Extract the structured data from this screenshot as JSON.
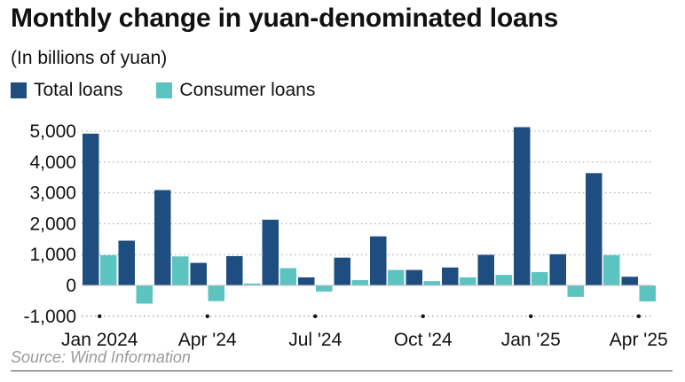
{
  "title": "Monthly change in yuan-denominated loans",
  "subtitle": "(In billions of yuan)",
  "source": "Source: Wind Information",
  "chart_data": {
    "type": "bar",
    "categories": [
      "Jan 2024",
      "Feb 2024",
      "Mar 2024",
      "Apr 2024",
      "May 2024",
      "Jun 2024",
      "Jul 2024",
      "Aug 2024",
      "Sep 2024",
      "Oct 2024",
      "Nov 2024",
      "Dec 2024",
      "Jan 2025",
      "Feb 2025",
      "Mar 2025",
      "Apr 2025"
    ],
    "tick_labels": [
      {
        "index": 0,
        "label": "Jan 2024"
      },
      {
        "index": 3,
        "label": "Apr '24"
      },
      {
        "index": 6,
        "label": "Jul '24"
      },
      {
        "index": 9,
        "label": "Oct '24"
      },
      {
        "index": 12,
        "label": "Jan '25"
      },
      {
        "index": 15,
        "label": "Apr '25"
      }
    ],
    "series": [
      {
        "name": "Total loans",
        "color": "#1d4e7f",
        "values": [
          4920,
          1450,
          3090,
          730,
          950,
          2130,
          260,
          900,
          1590,
          500,
          580,
          990,
          5130,
          1010,
          3640,
          280
        ]
      },
      {
        "name": "Consumer loans",
        "color": "#5cc4c0",
        "values": [
          980,
          -590,
          940,
          -510,
          60,
          560,
          -200,
          170,
          500,
          140,
          260,
          340,
          430,
          -370,
          980,
          -520
        ]
      }
    ],
    "yticks": [
      -1000,
      0,
      1000,
      2000,
      3000,
      4000,
      5000
    ],
    "ytick_labels": [
      "-1,000",
      "0",
      "1,000",
      "2,000",
      "3,000",
      "4,000",
      "5,000"
    ],
    "ylim": [
      -1000,
      5200
    ],
    "grid": "horizontal dotted",
    "legend": "top-left"
  }
}
